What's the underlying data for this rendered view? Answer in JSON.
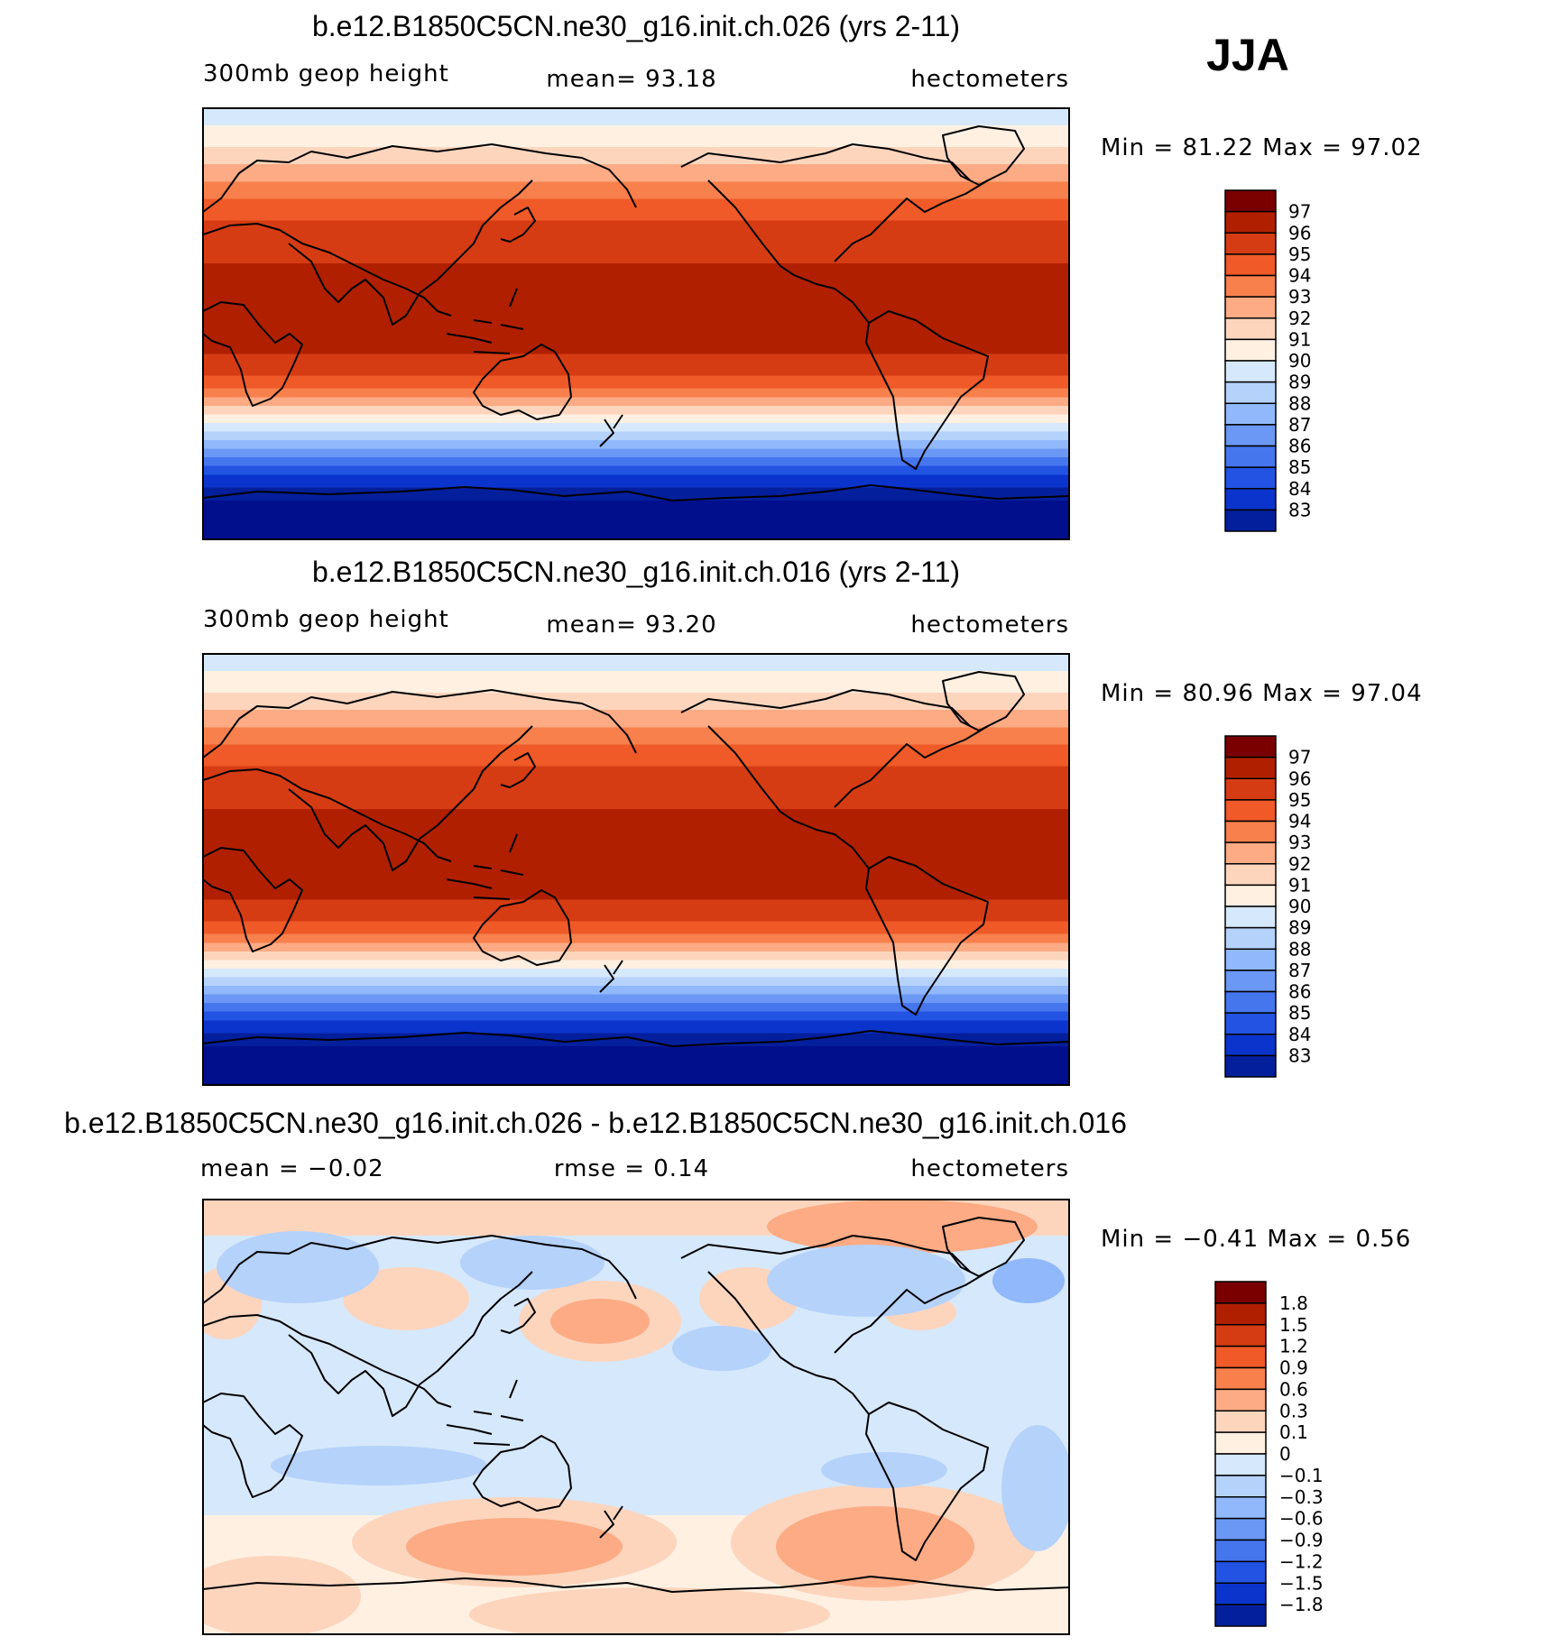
{
  "season": "JJA",
  "panels": [
    {
      "title": "b.e12.B1850C5CN.ne30_g16.init.ch.026 (yrs 2-11)",
      "left_label": "300mb  geop  height",
      "center_label": "mean=   93.18",
      "right_label": "hectometers",
      "stats": "Min  =    81.22  Max  =    97.02",
      "legend_labels": [
        "97",
        "96",
        "95",
        "94",
        "93",
        "92",
        "91",
        "90",
        "89",
        "88",
        "87",
        "86",
        "85",
        "84",
        "83"
      ],
      "legend_colors": [
        "#7a0000",
        "#b02000",
        "#d63c14",
        "#ef5a28",
        "#f7804c",
        "#fcab84",
        "#fdd5bd",
        "#fff0e2",
        "#d6e8fb",
        "#b5d2fb",
        "#90b8fa",
        "#6b98f5",
        "#4676ee",
        "#2253e2",
        "#0b34cc",
        "#041f9c"
      ]
    },
    {
      "title": "b.e12.B1850C5CN.ne30_g16.init.ch.016 (yrs 2-11)",
      "left_label": "300mb  geop  height",
      "center_label": "mean=   93.20",
      "right_label": "hectometers",
      "stats": "Min  =    80.96  Max  =    97.04",
      "legend_labels": [
        "97",
        "96",
        "95",
        "94",
        "93",
        "92",
        "91",
        "90",
        "89",
        "88",
        "87",
        "86",
        "85",
        "84",
        "83"
      ],
      "legend_colors": [
        "#7a0000",
        "#b02000",
        "#d63c14",
        "#ef5a28",
        "#f7804c",
        "#fcab84",
        "#fdd5bd",
        "#fff0e2",
        "#d6e8fb",
        "#b5d2fb",
        "#90b8fa",
        "#6b98f5",
        "#4676ee",
        "#2253e2",
        "#0b34cc",
        "#041f9c"
      ]
    },
    {
      "title": "b.e12.B1850C5CN.ne30_g16.init.ch.026 - b.e12.B1850C5CN.ne30_g16.init.ch.016",
      "left_label": "mean  =    −0.02",
      "center_label": "rmse  =     0.14",
      "right_label": "hectometers",
      "stats": "Min  =   −0.41  Max  =     0.56",
      "legend_labels": [
        "1.8",
        "1.5",
        "1.2",
        "0.9",
        "0.6",
        "0.3",
        "0.1",
        "0",
        "−0.1",
        "−0.3",
        "−0.6",
        "−0.9",
        "−1.2",
        "−1.5",
        "−1.8"
      ],
      "legend_colors": [
        "#7a0000",
        "#b02000",
        "#d63c14",
        "#ef5a28",
        "#f7804c",
        "#fcab84",
        "#fdd5bd",
        "#fff0e2",
        "#d6e8fb",
        "#b5d2fb",
        "#90b8fa",
        "#6b98f5",
        "#4676ee",
        "#2253e2",
        "#0b34cc",
        "#041f9c"
      ]
    }
  ]
}
